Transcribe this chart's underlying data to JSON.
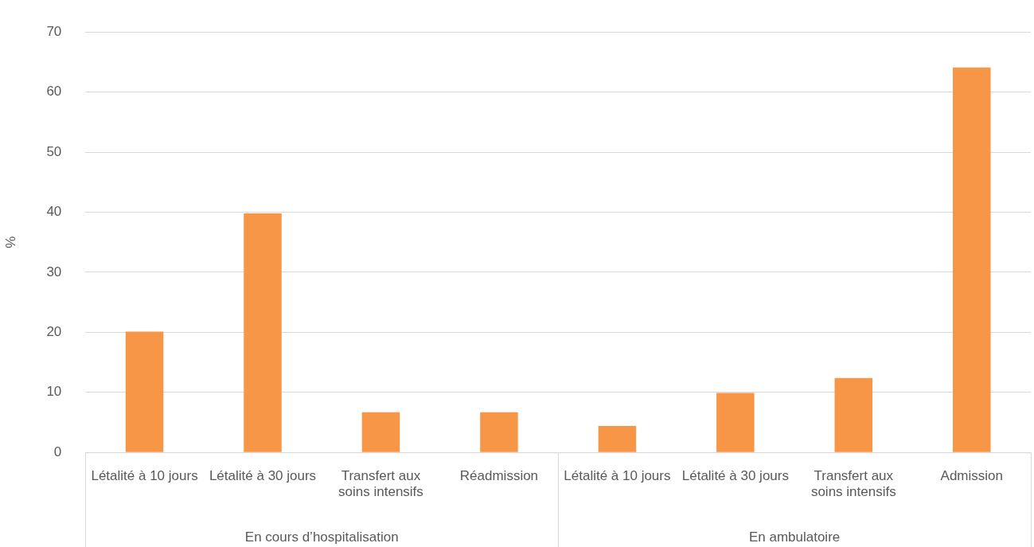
{
  "chart_data": {
    "type": "bar",
    "ylabel": "%",
    "categories": [
      "Létalité à 10 jours",
      "Létalité à 30 jours",
      "Transfert aux soins intensifs",
      "Réadmission",
      "Létalité à 10 jours",
      "Létalité à 30 jours",
      "Transfert aux soins intensifs",
      "Admission"
    ],
    "values": [
      20.1,
      39.8,
      6.7,
      6.7,
      4.4,
      9.9,
      12.4,
      64.1
    ],
    "color": "#f79646",
    "ylim": [
      0,
      70
    ],
    "yticks": [
      0,
      10,
      20,
      30,
      40,
      50,
      60,
      70
    ],
    "grid": "y",
    "legend": false,
    "annotations": [
      "En cours d’hospitalisation",
      "En ambulatoire"
    ]
  }
}
